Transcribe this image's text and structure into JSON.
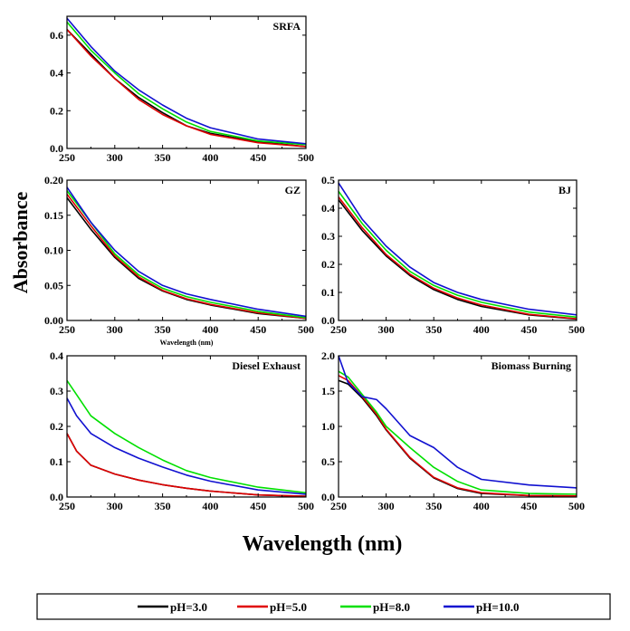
{
  "chart_data": [
    {
      "type": "line",
      "title": "SRFA",
      "xlim": [
        250,
        500
      ],
      "ylim": [
        0,
        0.7
      ],
      "xticks": [
        250,
        300,
        350,
        400,
        450,
        500
      ],
      "yticks": [
        0.0,
        0.2,
        0.4,
        0.6
      ],
      "ytick_labels": [
        "0.0",
        "0.2",
        "0.4",
        "0.6"
      ],
      "xlabel": "",
      "ylabel": "",
      "x": [
        250,
        275,
        300,
        325,
        350,
        375,
        400,
        450,
        500
      ],
      "series": [
        {
          "name": "pH=3.0",
          "values": [
            0.63,
            0.5,
            0.37,
            0.27,
            0.19,
            0.12,
            0.08,
            0.035,
            0.01
          ]
        },
        {
          "name": "pH=5.0",
          "values": [
            0.63,
            0.49,
            0.37,
            0.26,
            0.18,
            0.12,
            0.075,
            0.03,
            0.01
          ]
        },
        {
          "name": "pH=8.0",
          "values": [
            0.67,
            0.52,
            0.4,
            0.29,
            0.21,
            0.14,
            0.09,
            0.04,
            0.02
          ]
        },
        {
          "name": "pH=10.0",
          "values": [
            0.69,
            0.54,
            0.41,
            0.31,
            0.23,
            0.16,
            0.11,
            0.05,
            0.025
          ]
        }
      ]
    },
    {
      "type": "line",
      "title": "GZ",
      "xlim": [
        250,
        500
      ],
      "ylim": [
        0,
        0.2
      ],
      "xticks": [
        250,
        300,
        350,
        400,
        450,
        500
      ],
      "yticks": [
        0.0,
        0.05,
        0.1,
        0.15,
        0.2
      ],
      "ytick_labels": [
        "0.00",
        "0.05",
        "0.10",
        "0.15",
        "0.20"
      ],
      "xlabel": "Wavelength (nm)",
      "ylabel": "",
      "x": [
        250,
        275,
        300,
        325,
        350,
        375,
        400,
        450,
        500
      ],
      "series": [
        {
          "name": "pH=3.0",
          "values": [
            0.175,
            0.13,
            0.09,
            0.06,
            0.042,
            0.03,
            0.022,
            0.01,
            0.003
          ]
        },
        {
          "name": "pH=5.0",
          "values": [
            0.18,
            0.135,
            0.092,
            0.062,
            0.043,
            0.031,
            0.023,
            0.011,
            0.003
          ]
        },
        {
          "name": "pH=8.0",
          "values": [
            0.185,
            0.14,
            0.095,
            0.065,
            0.046,
            0.034,
            0.026,
            0.013,
            0.004
          ]
        },
        {
          "name": "pH=10.0",
          "values": [
            0.19,
            0.14,
            0.1,
            0.07,
            0.05,
            0.038,
            0.03,
            0.016,
            0.006
          ]
        }
      ]
    },
    {
      "type": "line",
      "title": "BJ",
      "xlim": [
        250,
        500
      ],
      "ylim": [
        0,
        0.5
      ],
      "xticks": [
        250,
        300,
        350,
        400,
        450,
        500
      ],
      "yticks": [
        0.0,
        0.1,
        0.2,
        0.3,
        0.4,
        0.5
      ],
      "ytick_labels": [
        "0.0",
        "0.1",
        "0.2",
        "0.3",
        "0.4",
        "0.5"
      ],
      "xlabel": "",
      "ylabel": "",
      "x": [
        250,
        275,
        300,
        325,
        350,
        375,
        400,
        450,
        500
      ],
      "series": [
        {
          "name": "pH=3.0",
          "values": [
            0.43,
            0.32,
            0.23,
            0.16,
            0.11,
            0.075,
            0.05,
            0.02,
            0.005
          ]
        },
        {
          "name": "pH=5.0",
          "values": [
            0.44,
            0.33,
            0.235,
            0.165,
            0.115,
            0.08,
            0.055,
            0.022,
            0.006
          ]
        },
        {
          "name": "pH=8.0",
          "values": [
            0.46,
            0.345,
            0.25,
            0.175,
            0.125,
            0.09,
            0.065,
            0.03,
            0.012
          ]
        },
        {
          "name": "pH=10.0",
          "values": [
            0.49,
            0.36,
            0.265,
            0.19,
            0.135,
            0.1,
            0.075,
            0.04,
            0.02
          ]
        }
      ]
    },
    {
      "type": "line",
      "title": "Diesel Exhaust",
      "xlim": [
        250,
        500
      ],
      "ylim": [
        0,
        0.4
      ],
      "xticks": [
        250,
        300,
        350,
        400,
        450,
        500
      ],
      "yticks": [
        0.0,
        0.1,
        0.2,
        0.3,
        0.4
      ],
      "ytick_labels": [
        "0.0",
        "0.1",
        "0.2",
        "0.3",
        "0.4"
      ],
      "xlabel": "",
      "ylabel": "",
      "x": [
        250,
        260,
        275,
        300,
        325,
        350,
        375,
        400,
        450,
        500
      ],
      "series": [
        {
          "name": "pH=3.0",
          "values": [
            0.18,
            0.13,
            0.09,
            0.065,
            0.048,
            0.035,
            0.025,
            0.017,
            0.006,
            0.002
          ]
        },
        {
          "name": "pH=5.0",
          "values": [
            0.18,
            0.13,
            0.09,
            0.065,
            0.048,
            0.035,
            0.025,
            0.017,
            0.006,
            0.002
          ]
        },
        {
          "name": "pH=8.0",
          "values": [
            0.33,
            0.29,
            0.23,
            0.18,
            0.14,
            0.105,
            0.075,
            0.055,
            0.028,
            0.012
          ]
        },
        {
          "name": "pH=10.0",
          "values": [
            0.28,
            0.23,
            0.18,
            0.14,
            0.11,
            0.085,
            0.062,
            0.045,
            0.02,
            0.008
          ]
        }
      ]
    },
    {
      "type": "line",
      "title": "Biomass Burning",
      "xlim": [
        250,
        500
      ],
      "ylim": [
        0,
        2.0
      ],
      "xticks": [
        250,
        300,
        350,
        400,
        450,
        500
      ],
      "yticks": [
        0.0,
        0.5,
        1.0,
        1.5,
        2.0
      ],
      "ytick_labels": [
        "0.0",
        "0.5",
        "1.0",
        "1.5",
        "2.0"
      ],
      "xlabel": "",
      "ylabel": "",
      "x": [
        250,
        260,
        275,
        290,
        300,
        325,
        350,
        375,
        400,
        450,
        500
      ],
      "series": [
        {
          "name": "pH=3.0",
          "values": [
            1.65,
            1.6,
            1.4,
            1.15,
            0.95,
            0.55,
            0.27,
            0.12,
            0.05,
            0.02,
            0.015
          ]
        },
        {
          "name": "pH=5.0",
          "values": [
            1.72,
            1.65,
            1.42,
            1.17,
            0.96,
            0.56,
            0.28,
            0.13,
            0.06,
            0.02,
            0.015
          ]
        },
        {
          "name": "pH=8.0",
          "values": [
            1.78,
            1.7,
            1.45,
            1.2,
            1.0,
            0.7,
            0.42,
            0.22,
            0.1,
            0.05,
            0.04
          ]
        },
        {
          "name": "pH=10.0",
          "values": [
            2.0,
            1.62,
            1.42,
            1.38,
            1.25,
            0.87,
            0.7,
            0.42,
            0.25,
            0.17,
            0.13
          ]
        }
      ]
    }
  ],
  "figure": {
    "ylabel": "Absorbance",
    "xlabel": "Wavelength (nm)"
  },
  "legend": {
    "placement": "bottom",
    "items": [
      {
        "label": "pH=3.0",
        "color": "#000000"
      },
      {
        "label": "pH=5.0",
        "color": "#e00000"
      },
      {
        "label": "pH=8.0",
        "color": "#00e000"
      },
      {
        "label": "pH=10.0",
        "color": "#1010d0"
      }
    ]
  }
}
